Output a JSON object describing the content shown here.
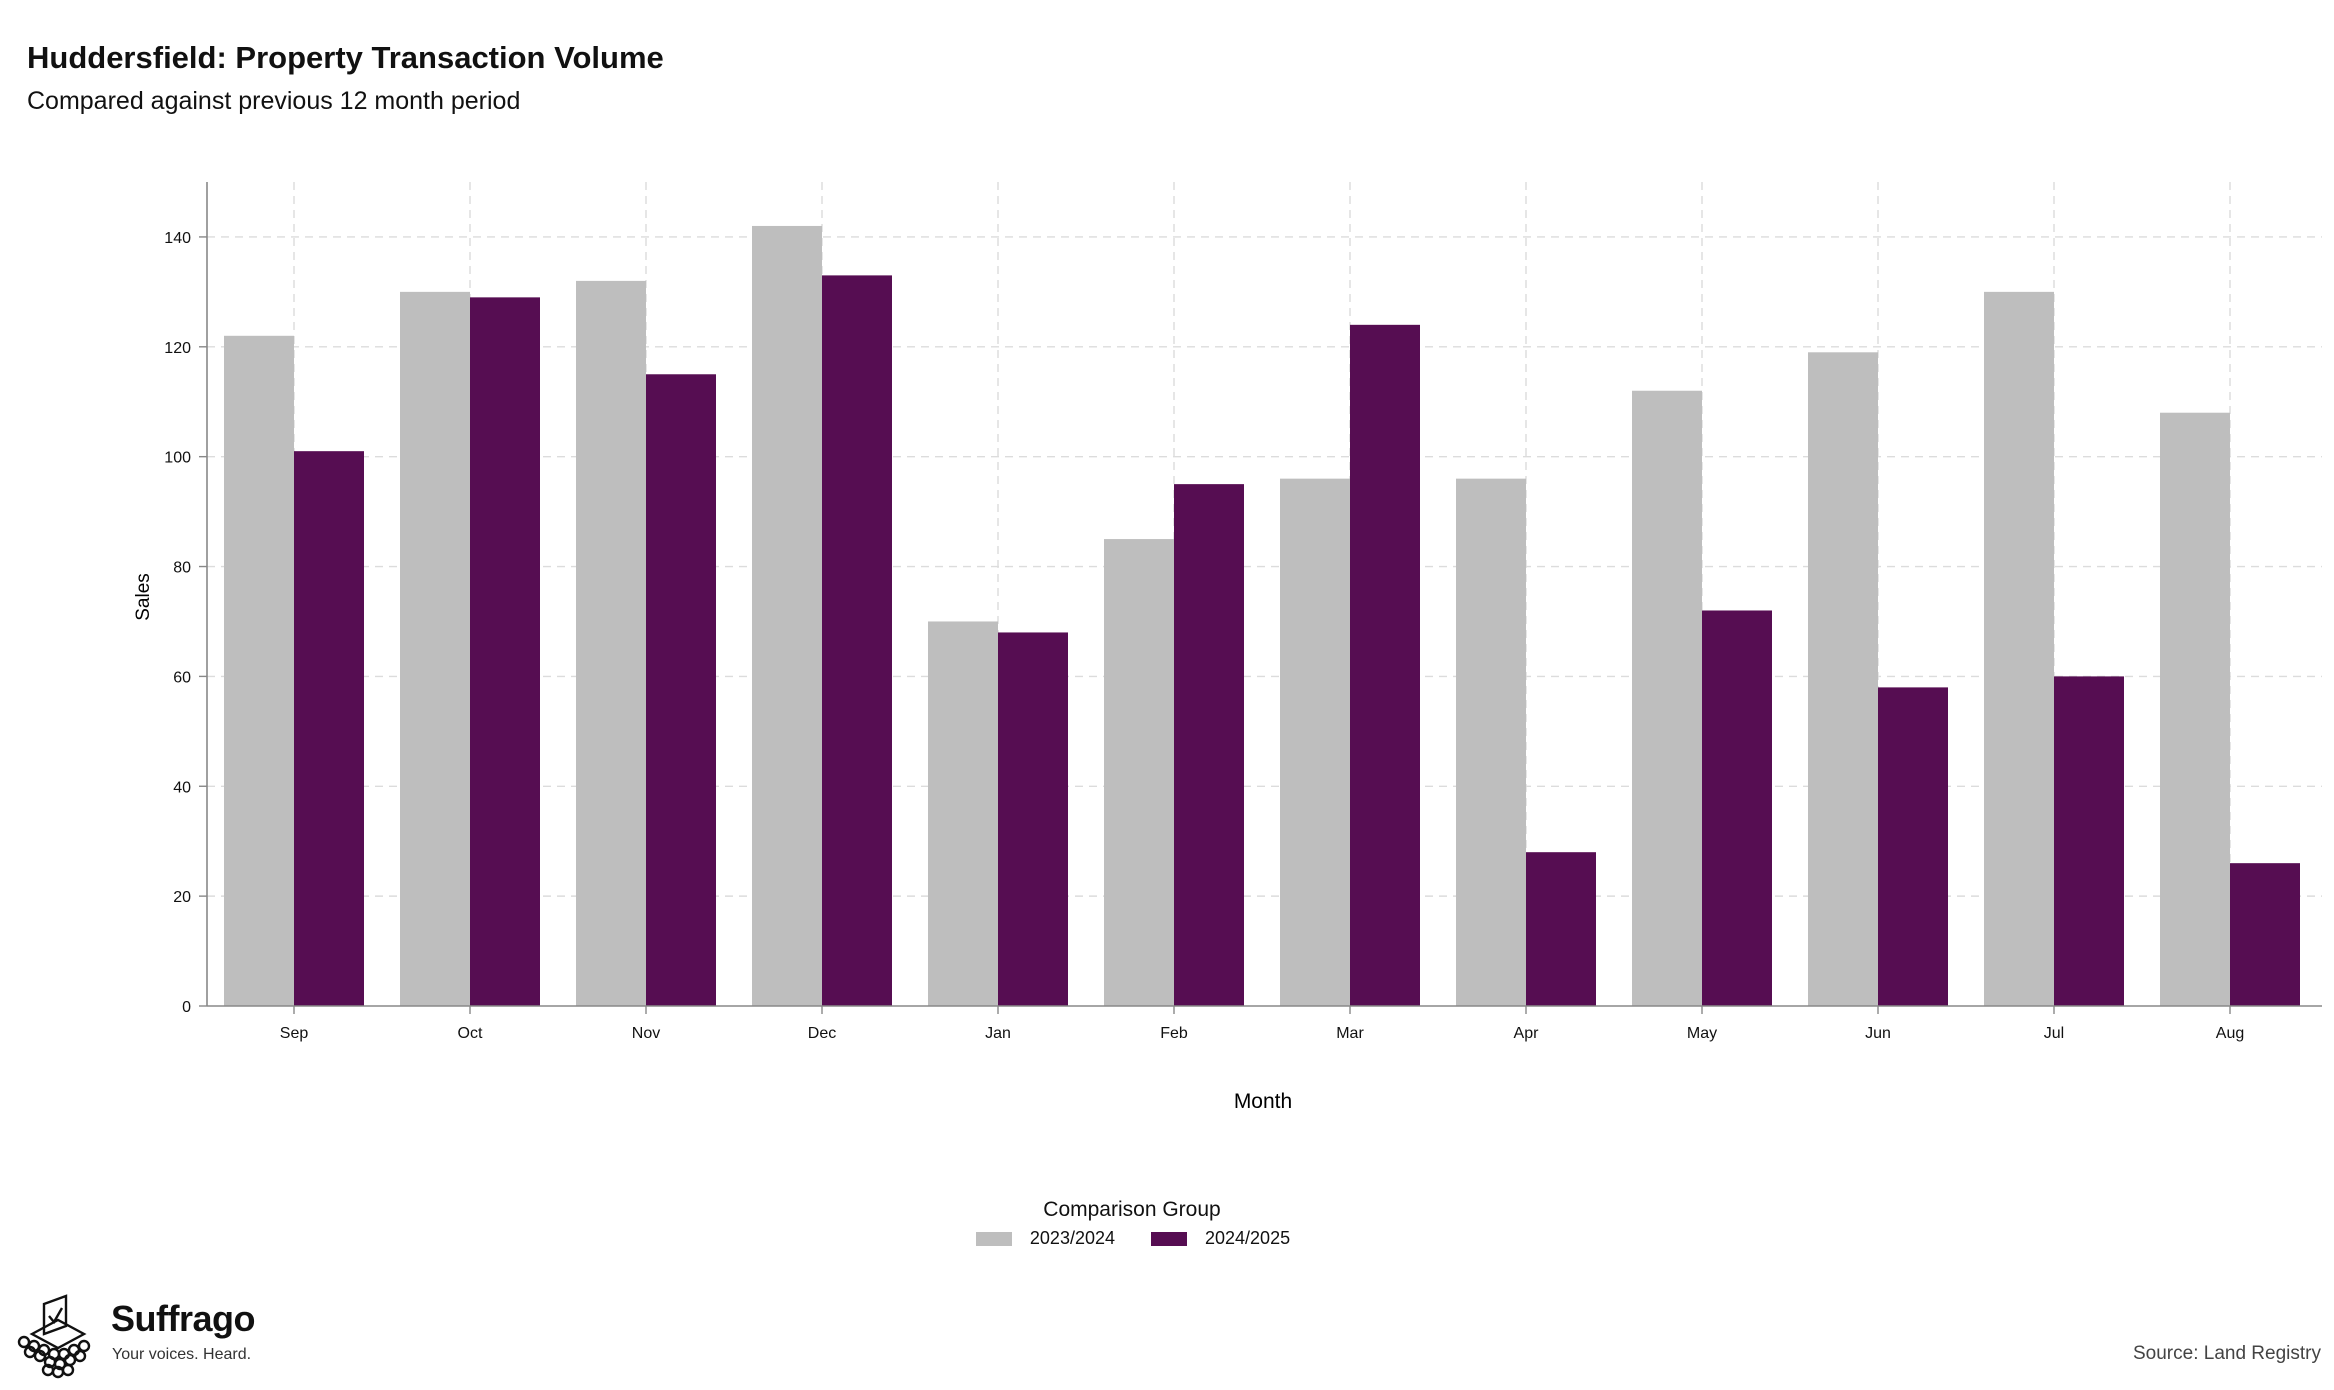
{
  "chart_data": {
    "type": "bar",
    "title": "Huddersfield: Property Transaction Volume",
    "subtitle": "Compared against previous 12 month period",
    "xlabel": "Month",
    "ylabel": "Sales",
    "ylim": [
      0,
      150
    ],
    "yticks": [
      0,
      20,
      40,
      60,
      80,
      100,
      120,
      140
    ],
    "grid": true,
    "legend_title": "Comparison Group",
    "legend_position": "bottom-center",
    "categories": [
      "Sep",
      "Oct",
      "Nov",
      "Dec",
      "Jan",
      "Feb",
      "Mar",
      "Apr",
      "May",
      "Jun",
      "Jul",
      "Aug"
    ],
    "series": [
      {
        "name": "2023/2024",
        "color": "#bebebe",
        "values": [
          122,
          130,
          132,
          142,
          70,
          85,
          96,
          96,
          112,
          119,
          130,
          108
        ]
      },
      {
        "name": "2024/2025",
        "color": "#560d52",
        "values": [
          101,
          129,
          115,
          133,
          68,
          95,
          124,
          28,
          72,
          58,
          60,
          26
        ]
      }
    ]
  },
  "brand": {
    "name": "Suffrago",
    "tagline": "Your voices. Heard.",
    "icon": "ballot-box-icon"
  },
  "source": "Source: Land Registry"
}
